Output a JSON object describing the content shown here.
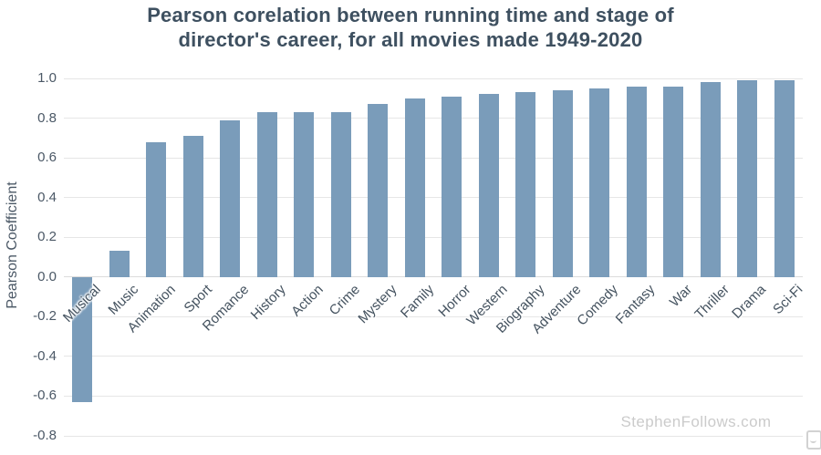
{
  "title": {
    "line1": "Pearson corelation between running time and stage of",
    "line2": "director's career, for all movies made 1949-2020"
  },
  "watermark": "StephenFollows.com",
  "brand_logo_icon": "amcharts-logo-icon",
  "chart_data": {
    "type": "bar",
    "title": "Pearson corelation between running time and stage of director's career, for all movies made 1949-2020",
    "xlabel": "",
    "ylabel": "Pearson Coefficient",
    "ylim": [
      -0.8,
      1.0
    ],
    "yticks": [
      "1.0",
      "0.8",
      "0.6",
      "0.4",
      "0.2",
      "0.0",
      "-0.2",
      "-0.4",
      "-0.6",
      "-0.8"
    ],
    "grid": true,
    "legend": "none",
    "categories": [
      "Musical",
      "Music",
      "Animation",
      "Sport",
      "Romance",
      "History",
      "Action",
      "Crime",
      "Mystery",
      "Family",
      "Horror",
      "Western",
      "Biography",
      "Adventure",
      "Comedy",
      "Fantasy",
      "War",
      "Thriller",
      "Drama",
      "Sci-Fi"
    ],
    "values": [
      -0.63,
      0.13,
      0.68,
      0.71,
      0.79,
      0.83,
      0.83,
      0.83,
      0.87,
      0.9,
      0.91,
      0.92,
      0.93,
      0.94,
      0.95,
      0.96,
      0.96,
      0.98,
      0.99,
      0.99
    ],
    "bar_color": "#7a9cba",
    "grid_color": "#e6e6e6",
    "title_color": "#3e5060",
    "tick_color": "#4b5866"
  }
}
